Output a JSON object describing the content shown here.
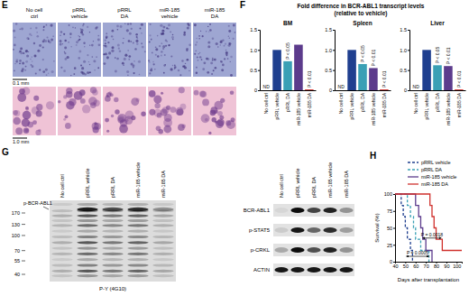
{
  "chart_data": [
    {
      "type": "bar",
      "title": "BM",
      "categories": [
        "No cell ctrl",
        "pRRL vehicle",
        "pRRL DA",
        "miR-185 vehicle",
        "miR-185 DA"
      ],
      "values": [
        null,
        1.0,
        0.72,
        1.13,
        0.02
      ],
      "colors": [
        "#000000",
        "#1f3f8f",
        "#3aa0b5",
        "#5c3b8c",
        "#d0312d"
      ],
      "ylim": [
        0,
        1.5
      ],
      "yticks": [
        0,
        0.5,
        {
          "value": 1,
          "label": "1.0"
        },
        1.5
      ],
      "annotations": [
        {
          "text": "ND",
          "category": 0
        },
        {
          "text": "P < 0.05",
          "category": 2
        },
        {
          "text": "P < 0.01",
          "category": 4
        }
      ]
    },
    {
      "type": "bar",
      "title": "Spleen",
      "categories": [
        "No cell ctrl",
        "pRRL vehicle",
        "pRRL DA",
        "miR-185 vehicle",
        "miR-185 DA"
      ],
      "values": [
        null,
        1.0,
        0.65,
        0.55,
        0.02
      ],
      "colors": [
        "#000000",
        "#1f3f8f",
        "#3aa0b5",
        "#5c3b8c",
        "#d0312d"
      ],
      "ylim": [
        0,
        1.5
      ],
      "yticks": [
        0,
        0.5,
        {
          "value": 1,
          "label": "1.0"
        },
        1.5
      ],
      "annotations": [
        {
          "text": "ND",
          "category": 0
        },
        {
          "text": "P < 0.05",
          "category": 2
        },
        {
          "text": "P < 0.01",
          "category": 3
        },
        {
          "text": "P < 0.01",
          "category": 4
        }
      ]
    },
    {
      "type": "bar",
      "title": "Liver",
      "categories": [
        "No cell ctrl",
        "pRRL vehicle",
        "pRRL DA",
        "miR-185 vehicle",
        "miR-185 DA"
      ],
      "values": [
        null,
        1.0,
        0.62,
        0.6,
        0.02
      ],
      "colors": [
        "#000000",
        "#1f3f8f",
        "#3aa0b5",
        "#5c3b8c",
        "#d0312d"
      ],
      "ylim": [
        0,
        1.5
      ],
      "yticks": [
        0,
        0.5,
        {
          "value": 1,
          "label": "1.0"
        },
        1.5
      ],
      "annotations": [
        {
          "text": "ND",
          "category": 0
        },
        {
          "text": "P < 0.05",
          "category": 2
        },
        {
          "text": "P < 0.01",
          "category": 3
        },
        {
          "text": "P < 0.01",
          "category": 4
        }
      ]
    },
    {
      "type": "step",
      "xlabel": "Days after transplantation",
      "ylabel": "Survival (%)",
      "xlim": [
        40,
        105
      ],
      "xticks": [
        40,
        50,
        60,
        70,
        80,
        90,
        100
      ],
      "ylim": [
        0,
        100
      ],
      "yticks": [
        0,
        25,
        50,
        75,
        100
      ],
      "legend": "upper right",
      "series": [
        {
          "name": "pRRL vehicle",
          "color": "#1f3f8f",
          "line_style": "dashed",
          "x": [
            40,
            46,
            48,
            50,
            52,
            55,
            57
          ],
          "values": [
            100,
            83.3,
            66.7,
            50,
            33.3,
            16.7,
            0
          ]
        },
        {
          "name": "pRRL DA",
          "color": "#3aa0b5",
          "line_style": "dashed",
          "x": [
            40,
            52,
            55,
            58,
            60,
            65,
            73
          ],
          "values": [
            100,
            83.3,
            66.7,
            50,
            33.3,
            16.7,
            0
          ]
        },
        {
          "name": "miR-185 vehicle",
          "color": "#5c3b8c",
          "line_style": "solid",
          "x": [
            40,
            60,
            63,
            65,
            67,
            70,
            76
          ],
          "values": [
            100,
            83.3,
            66.7,
            50,
            33.3,
            16.7,
            0
          ]
        },
        {
          "name": "miR-185 DA",
          "color": "#d0312d",
          "line_style": "solid",
          "x": [
            40,
            74,
            76,
            78,
            80,
            86,
            105
          ],
          "values": [
            100,
            83.3,
            66.7,
            50,
            33.3,
            16.7,
            16.7
          ]
        }
      ],
      "annotations": [
        {
          "text": "P = 0.0005",
          "x": [
            51,
            73
          ],
          "y": 8
        },
        {
          "text": "P = 0.0018",
          "x": [
            67,
            85
          ],
          "y": 35
        }
      ]
    }
  ],
  "panels": {
    "E": {
      "letter": "E",
      "columns": [
        "No cell ctrl",
        "pRRL vehicle",
        "pRRL DA",
        "miR-185 vehicle",
        "miR-185 DA"
      ],
      "scale_bars": [
        "0.1 mm",
        "1.0 mm"
      ]
    },
    "F": {
      "letter": "F",
      "title": [
        "Fold difference in BCR-ABL1 transcript levels",
        "(relative to vehicle)"
      ]
    },
    "G": {
      "letter": "G",
      "lanes": [
        "No cell ctrl",
        "pRRL vehicle",
        "pRRL DA",
        "miR-185 vehicle",
        "miR-185 DA"
      ],
      "markers": [
        170,
        130,
        100,
        70,
        55,
        40
      ],
      "band_label": "p-BCR-ABL1",
      "blot_label": "P-Y (4G10)",
      "rows": [
        "BCR-ABL1",
        "p-STAT5",
        "p-CRKL",
        "ACTIN"
      ]
    },
    "H": {
      "letter": "H"
    }
  }
}
